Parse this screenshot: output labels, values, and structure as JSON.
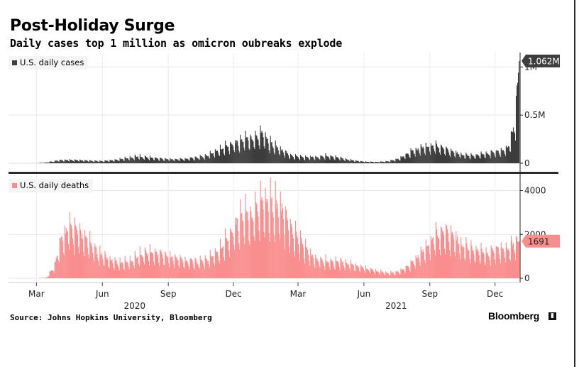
{
  "title": "Post-Holiday Surge",
  "subtitle": "Daily cases top 1 million as omicron oubreaks explode",
  "source": "Source: Johns Hopkins University, Bloomberg",
  "brand": "Bloomberg",
  "colors": {
    "cases": "#3d3d3d",
    "deaths": "#f98e8e",
    "deaths_label": "#f98e8e",
    "axis": "#222222"
  },
  "chart_data": [
    {
      "type": "bar",
      "legend": "U.S. daily cases",
      "y_ticks": [
        "0",
        "0.5M",
        "1M"
      ],
      "y_tick_values": [
        0,
        500000,
        1000000
      ],
      "ylim": [
        0,
        1150000
      ],
      "last_value_label": "1.062M",
      "last_value": 1062000,
      "series": [
        {
          "name": "U.S. daily cases",
          "points": [
            [
              "2020-01-22",
              0
            ],
            [
              "2020-03-01",
              500
            ],
            [
              "2020-03-15",
              8000
            ],
            [
              "2020-03-28",
              25000
            ],
            [
              "2020-04-10",
              32000
            ],
            [
              "2020-04-25",
              30000
            ],
            [
              "2020-05-15",
              24000
            ],
            [
              "2020-06-01",
              21000
            ],
            [
              "2020-06-20",
              33000
            ],
            [
              "2020-07-05",
              50000
            ],
            [
              "2020-07-20",
              68000
            ],
            [
              "2020-08-05",
              56000
            ],
            [
              "2020-08-25",
              43000
            ],
            [
              "2020-09-10",
              37000
            ],
            [
              "2020-09-25",
              44000
            ],
            [
              "2020-10-10",
              55000
            ],
            [
              "2020-10-25",
              75000
            ],
            [
              "2020-11-08",
              125000
            ],
            [
              "2020-11-22",
              170000
            ],
            [
              "2020-12-05",
              200000
            ],
            [
              "2020-12-18",
              235000
            ],
            [
              "2021-01-02",
              255000
            ],
            [
              "2021-01-09",
              300000
            ],
            [
              "2021-01-20",
              200000
            ],
            [
              "2021-02-05",
              125000
            ],
            [
              "2021-02-20",
              70000
            ],
            [
              "2021-03-10",
              57000
            ],
            [
              "2021-03-25",
              62000
            ],
            [
              "2021-04-10",
              72000
            ],
            [
              "2021-04-25",
              55000
            ],
            [
              "2021-05-15",
              30000
            ],
            [
              "2021-06-01",
              15000
            ],
            [
              "2021-06-20",
              12000
            ],
            [
              "2021-07-05",
              20000
            ],
            [
              "2021-07-20",
              45000
            ],
            [
              "2021-08-05",
              110000
            ],
            [
              "2021-08-20",
              150000
            ],
            [
              "2021-09-01",
              170000
            ],
            [
              "2021-09-15",
              160000
            ],
            [
              "2021-10-01",
              110000
            ],
            [
              "2021-10-20",
              78000
            ],
            [
              "2021-11-05",
              75000
            ],
            [
              "2021-11-20",
              95000
            ],
            [
              "2021-12-05",
              115000
            ],
            [
              "2021-12-15",
              135000
            ],
            [
              "2021-12-22",
              200000
            ],
            [
              "2021-12-29",
              450000
            ],
            [
              "2022-01-03",
              1062000
            ]
          ]
        }
      ]
    },
    {
      "type": "bar",
      "legend": "U.S. daily deaths",
      "y_ticks": [
        "0",
        "2000",
        "4000"
      ],
      "y_tick_values": [
        0,
        2000,
        4000
      ],
      "ylim": [
        0,
        4600
      ],
      "last_value_label": "1691",
      "last_value": 1691,
      "series": [
        {
          "name": "U.S. daily deaths",
          "points": [
            [
              "2020-01-22",
              0
            ],
            [
              "2020-03-01",
              0
            ],
            [
              "2020-03-15",
              30
            ],
            [
              "2020-03-25",
              500
            ],
            [
              "2020-04-05",
              1700
            ],
            [
              "2020-04-15",
              2200
            ],
            [
              "2020-04-25",
              2000
            ],
            [
              "2020-05-10",
              1600
            ],
            [
              "2020-05-25",
              1100
            ],
            [
              "2020-06-10",
              800
            ],
            [
              "2020-06-25",
              650
            ],
            [
              "2020-07-10",
              750
            ],
            [
              "2020-07-25",
              1050
            ],
            [
              "2020-08-10",
              1100
            ],
            [
              "2020-08-25",
              1000
            ],
            [
              "2020-09-10",
              850
            ],
            [
              "2020-09-25",
              750
            ],
            [
              "2020-10-10",
              700
            ],
            [
              "2020-10-25",
              800
            ],
            [
              "2020-11-10",
              1200
            ],
            [
              "2020-11-25",
              1800
            ],
            [
              "2020-12-10",
              2600
            ],
            [
              "2020-12-25",
              2700
            ],
            [
              "2021-01-08",
              3300
            ],
            [
              "2021-01-20",
              3200
            ],
            [
              "2021-02-05",
              2900
            ],
            [
              "2021-02-20",
              2000
            ],
            [
              "2021-03-05",
              1500
            ],
            [
              "2021-03-20",
              950
            ],
            [
              "2021-04-05",
              750
            ],
            [
              "2021-04-20",
              700
            ],
            [
              "2021-05-05",
              680
            ],
            [
              "2021-05-20",
              550
            ],
            [
              "2021-06-05",
              400
            ],
            [
              "2021-06-20",
              300
            ],
            [
              "2021-07-05",
              220
            ],
            [
              "2021-07-20",
              280
            ],
            [
              "2021-08-05",
              600
            ],
            [
              "2021-08-20",
              1100
            ],
            [
              "2021-09-05",
              1700
            ],
            [
              "2021-09-20",
              2000
            ],
            [
              "2021-10-05",
              1700
            ],
            [
              "2021-10-20",
              1350
            ],
            [
              "2021-11-05",
              1150
            ],
            [
              "2021-11-20",
              1050
            ],
            [
              "2021-12-05",
              1250
            ],
            [
              "2021-12-20",
              1300
            ],
            [
              "2022-01-03",
              1691
            ]
          ]
        }
      ]
    }
  ],
  "x_axis": {
    "month_ticks": [
      {
        "label": "Mar",
        "date": "2020-03-01"
      },
      {
        "label": "Jun",
        "date": "2020-06-01"
      },
      {
        "label": "Sep",
        "date": "2020-09-01"
      },
      {
        "label": "Dec",
        "date": "2020-12-01"
      },
      {
        "label": "Mar",
        "date": "2021-03-01"
      },
      {
        "label": "Jun",
        "date": "2021-06-01"
      },
      {
        "label": "Sep",
        "date": "2021-09-01"
      },
      {
        "label": "Dec",
        "date": "2021-12-01"
      }
    ],
    "year_labels": [
      {
        "label": "2020",
        "date": "2020-07-16"
      },
      {
        "label": "2021",
        "date": "2021-07-16"
      }
    ],
    "range": [
      "2020-01-22",
      "2022-01-05"
    ]
  }
}
